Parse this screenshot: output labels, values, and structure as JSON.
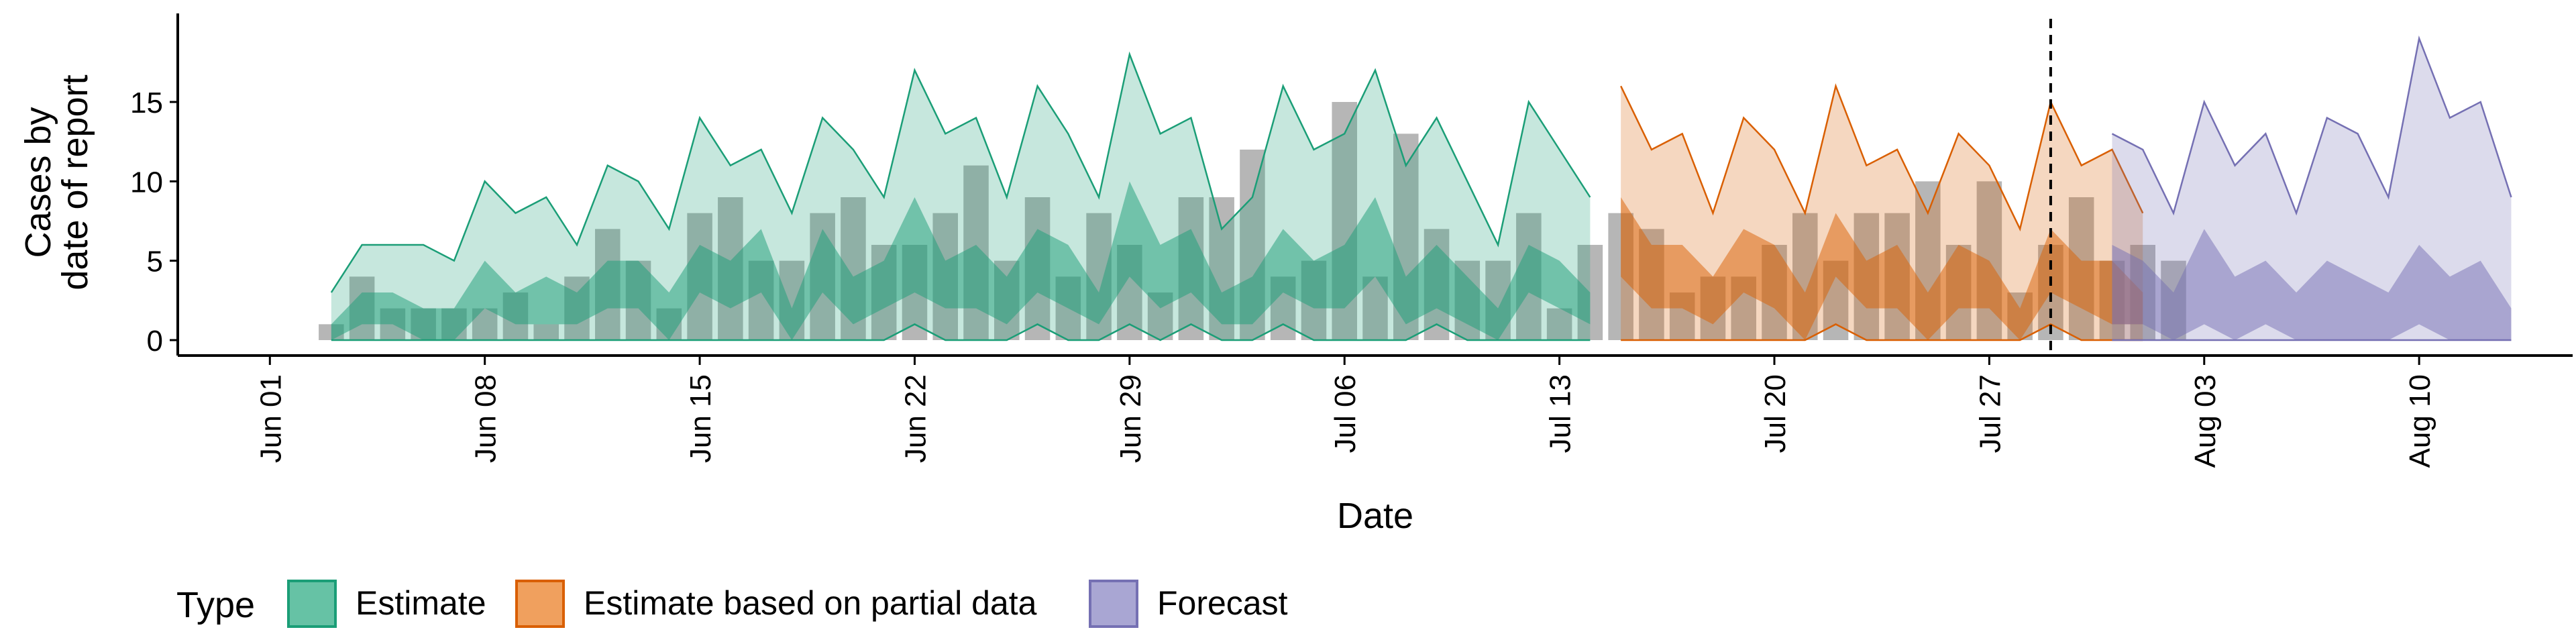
{
  "chart_data": {
    "type": "area",
    "title": "",
    "xlabel": "Date",
    "ylabel_lines": [
      "Cases by",
      "date of report"
    ],
    "x_range": [
      "2020-05-29",
      "2020-08-15"
    ],
    "ylim": [
      0,
      20
    ],
    "yticks": [
      0,
      5,
      10,
      15
    ],
    "xticks": [
      {
        "date": "2020-06-01",
        "label": "Jun 01"
      },
      {
        "date": "2020-06-08",
        "label": "Jun 08"
      },
      {
        "date": "2020-06-15",
        "label": "Jun 15"
      },
      {
        "date": "2020-06-22",
        "label": "Jun 22"
      },
      {
        "date": "2020-06-29",
        "label": "Jun 29"
      },
      {
        "date": "2020-07-06",
        "label": "Jul 06"
      },
      {
        "date": "2020-07-13",
        "label": "Jul 13"
      },
      {
        "date": "2020-07-20",
        "label": "Jul 20"
      },
      {
        "date": "2020-07-27",
        "label": "Jul 27"
      },
      {
        "date": "2020-08-03",
        "label": "Aug 03"
      },
      {
        "date": "2020-08-10",
        "label": "Aug 10"
      }
    ],
    "vline_date": "2020-07-29",
    "grid": false,
    "legend": {
      "position": "bottom",
      "title": "Type",
      "items": [
        {
          "label": "Estimate",
          "fill": "#66c2a5",
          "stroke": "#1b9e77"
        },
        {
          "label": "Estimate based on partial data",
          "fill": "#f0a05e",
          "stroke": "#d95f02"
        },
        {
          "label": "Forecast",
          "fill": "#a9a6d3",
          "stroke": "#7570b3"
        }
      ]
    },
    "colors": {
      "estimate": "#1b9e77",
      "partial": "#d95f02",
      "forecast": "#7570b3",
      "bars": "#9e9e9e"
    },
    "observed_cases": {
      "start_date": "2020-06-03",
      "values": [
        1,
        4,
        2,
        2,
        2,
        2,
        3,
        1,
        4,
        7,
        5,
        2,
        8,
        9,
        5,
        5,
        8,
        9,
        6,
        6,
        8,
        11,
        5,
        9,
        4,
        8,
        6,
        3,
        9,
        9,
        12,
        4,
        5,
        15,
        4,
        13,
        7,
        5,
        5,
        8,
        2,
        6,
        8,
        7,
        3,
        4,
        4,
        6,
        8,
        5,
        8,
        8,
        10,
        6,
        10,
        3,
        6,
        9,
        5,
        6,
        5
      ]
    },
    "series": [
      {
        "name": "Estimate",
        "start_date": "2020-06-03",
        "upper_90": [
          3,
          6,
          6,
          6,
          5,
          10,
          8,
          9,
          6,
          11,
          10,
          7,
          14,
          11,
          12,
          8,
          14,
          12,
          9,
          17,
          13,
          14,
          9,
          16,
          13,
          9,
          18,
          13,
          14,
          7,
          9,
          16,
          12,
          13,
          17,
          11,
          14,
          10,
          6,
          15,
          12,
          9
        ],
        "upper_50": [
          1,
          3,
          3,
          2,
          2,
          5,
          3,
          4,
          3,
          5,
          5,
          3,
          6,
          5,
          7,
          2,
          7,
          4,
          5,
          9,
          5,
          6,
          4,
          7,
          6,
          3,
          10,
          6,
          7,
          3,
          4,
          7,
          5,
          6,
          9,
          4,
          6,
          4,
          2,
          6,
          5,
          3
        ],
        "lower_50": [
          0,
          1,
          1,
          0,
          0,
          2,
          1,
          1,
          1,
          2,
          2,
          0,
          3,
          2,
          3,
          0,
          3,
          1,
          2,
          3,
          2,
          2,
          1,
          3,
          2,
          1,
          4,
          2,
          3,
          1,
          1,
          3,
          2,
          2,
          4,
          1,
          2,
          1,
          0,
          3,
          2,
          1
        ],
        "lower_90": [
          0,
          0,
          0,
          0,
          0,
          0,
          0,
          0,
          0,
          0,
          0,
          0,
          0,
          0,
          0,
          0,
          0,
          0,
          0,
          1,
          0,
          0,
          0,
          1,
          0,
          0,
          1,
          0,
          1,
          0,
          0,
          1,
          0,
          0,
          0,
          0,
          1,
          0,
          0,
          0,
          0,
          0
        ]
      },
      {
        "name": "Estimate based on partial data",
        "start_date": "2020-07-15",
        "upper_90": [
          16,
          12,
          13,
          8,
          14,
          12,
          8,
          16,
          11,
          12,
          8,
          13,
          11,
          7,
          15,
          11,
          12,
          8
        ],
        "upper_50": [
          9,
          6,
          6,
          4,
          7,
          6,
          3,
          8,
          5,
          6,
          3,
          6,
          5,
          2,
          7,
          5,
          5,
          3
        ],
        "lower_50": [
          4,
          2,
          2,
          1,
          3,
          2,
          0,
          4,
          2,
          2,
          0,
          2,
          2,
          0,
          3,
          2,
          1,
          1
        ],
        "lower_90": [
          0,
          0,
          0,
          0,
          0,
          0,
          0,
          1,
          0,
          0,
          0,
          0,
          0,
          0,
          1,
          0,
          0,
          0
        ]
      },
      {
        "name": "Forecast",
        "start_date": "2020-07-31",
        "upper_90": [
          13,
          12,
          8,
          15,
          11,
          13,
          8,
          14,
          13,
          9,
          19,
          14,
          15,
          9
        ],
        "upper_50": [
          6,
          5,
          3,
          7,
          4,
          5,
          3,
          5,
          4,
          3,
          6,
          4,
          5,
          2
        ],
        "lower_50": [
          1,
          1,
          0,
          1,
          0,
          1,
          0,
          0,
          0,
          0,
          1,
          0,
          0,
          0
        ],
        "lower_90": [
          0,
          0,
          0,
          0,
          0,
          0,
          0,
          0,
          0,
          0,
          0,
          0,
          0,
          0
        ]
      }
    ]
  }
}
